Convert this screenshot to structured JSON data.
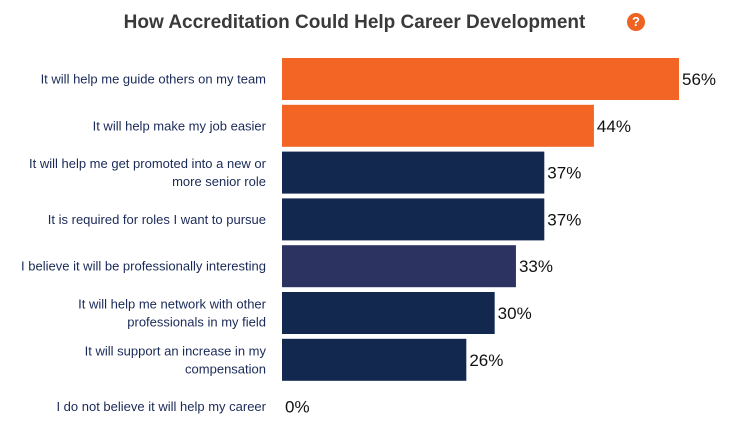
{
  "chart_data": {
    "type": "bar",
    "orientation": "horizontal",
    "title": "How Accreditation Could Help Career Development",
    "categories": [
      [
        "It will help me guide others on my team"
      ],
      [
        "It will help make my job easier"
      ],
      [
        "It will help me get promoted into a new or",
        "more senior role"
      ],
      [
        "It is required for roles I want to pursue"
      ],
      [
        "I believe it will be professionally interesting"
      ],
      [
        "It will help me network with other",
        "professionals in my field"
      ],
      [
        "It will support an increase in my",
        "compensation"
      ],
      [
        "I do not believe it will help my career"
      ]
    ],
    "values": [
      56,
      44,
      37,
      37,
      33,
      30,
      26,
      0
    ],
    "value_labels": [
      "56%",
      "44%",
      "37%",
      "37%",
      "33%",
      "30%",
      "26%",
      "0%"
    ],
    "bar_colors": [
      "#f26524",
      "#f26524",
      "#13284f",
      "#13284f",
      "#2c3360",
      "#13284f",
      "#13284f",
      "#13284f"
    ],
    "xlim": [
      0,
      56
    ],
    "grid": false,
    "legend": "none"
  },
  "help_icon": "?"
}
